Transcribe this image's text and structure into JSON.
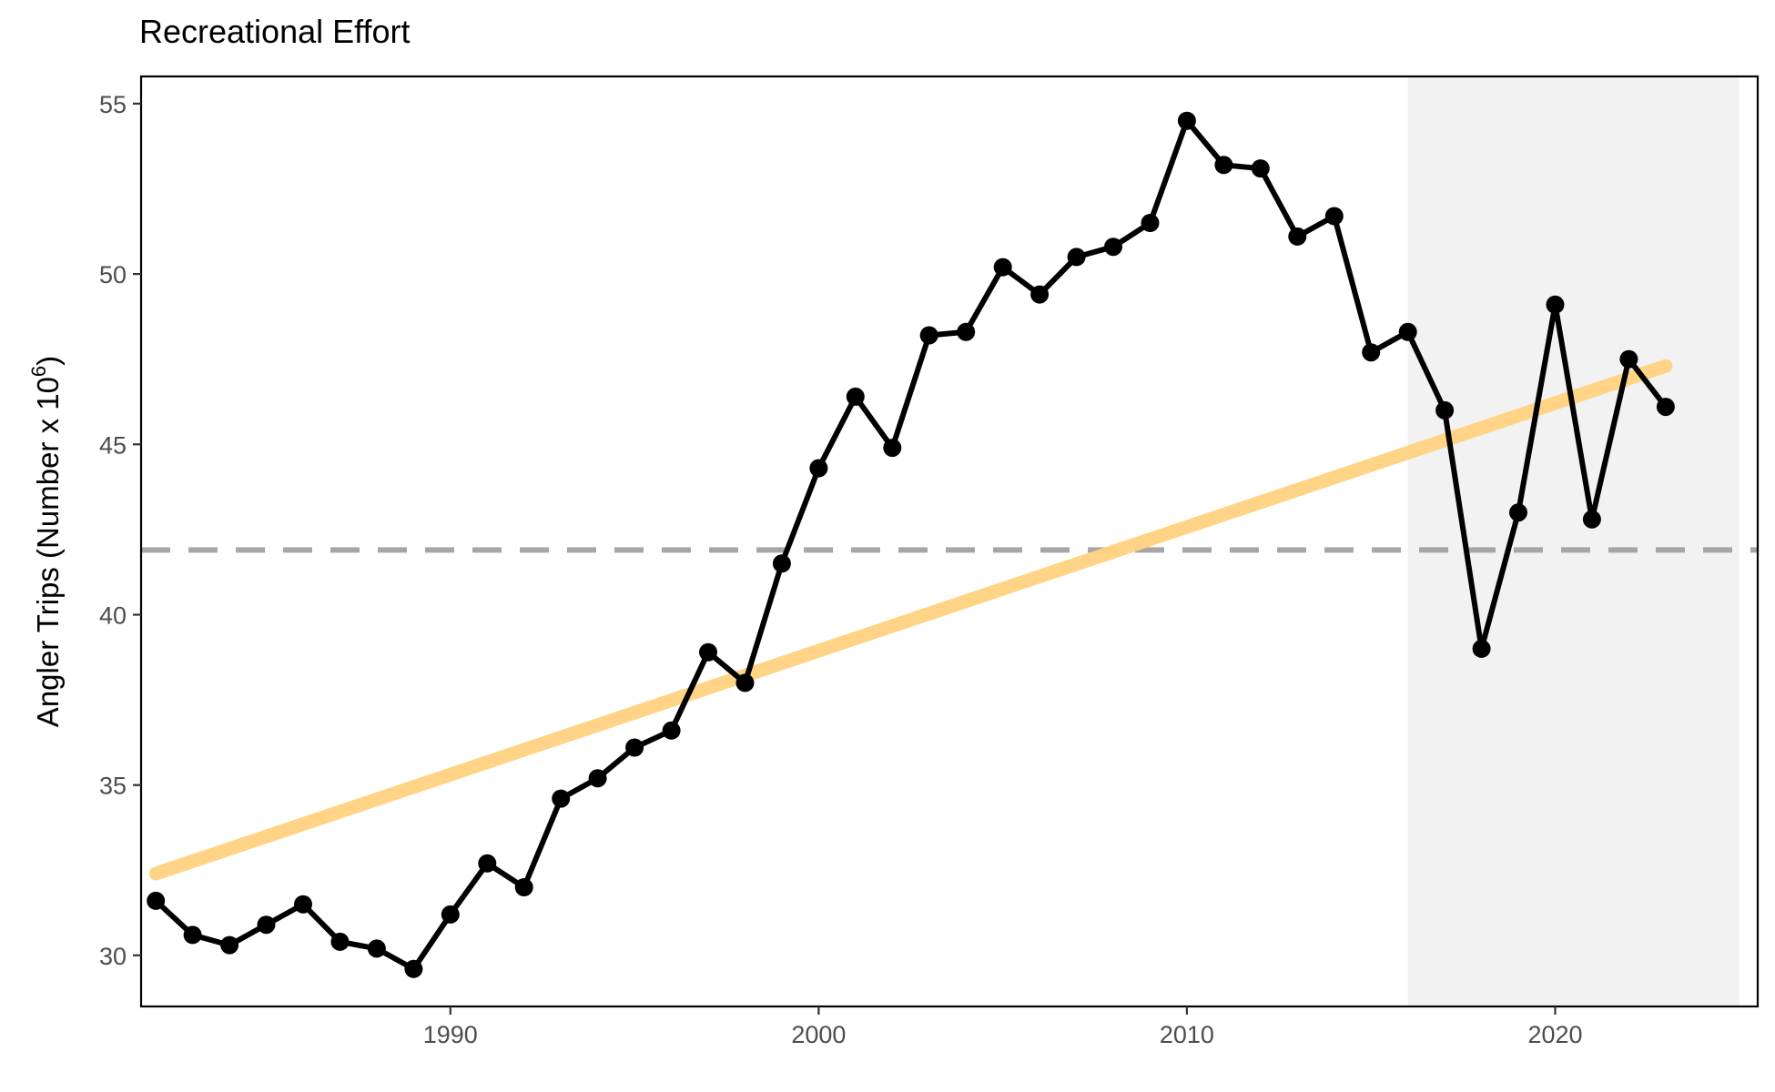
{
  "chart_data": {
    "type": "line",
    "title": "Recreational Effort",
    "ylabel": "Angler Trips (Number x 10",
    "ylabel_superscript": "6",
    "ylabel_suffix": ")",
    "xlabel": "",
    "xlim": [
      1981.6,
      2025.5
    ],
    "ylim": [
      28.5,
      55.8
    ],
    "x_ticks": [
      1990,
      2000,
      2010,
      2020
    ],
    "y_ticks": [
      30,
      35,
      40,
      45,
      50,
      55
    ],
    "grid": false,
    "legend": "none",
    "highlight_region": {
      "from": 2016,
      "to": 2025,
      "color": "#f2f2f2"
    },
    "reference_line": {
      "y": 41.9,
      "style": "dashed",
      "color": "#a6a6a6"
    },
    "trend_line": {
      "start": [
        1982,
        32.4
      ],
      "end": [
        2023,
        47.3
      ],
      "color": "#ffd27f"
    },
    "series": [
      {
        "color": "#000000",
        "x": [
          1982,
          1983,
          1984,
          1985,
          1986,
          1987,
          1988,
          1989,
          1990,
          1991,
          1992,
          1993,
          1994,
          1995,
          1996,
          1997,
          1998,
          1999,
          2000,
          2001,
          2002,
          2003,
          2004,
          2005,
          2006,
          2007,
          2008,
          2009,
          2010,
          2011,
          2012,
          2013,
          2014,
          2015,
          2016,
          2017,
          2018,
          2019,
          2020,
          2021,
          2022,
          2023
        ],
        "values": [
          31.6,
          30.6,
          30.3,
          30.9,
          31.5,
          30.4,
          30.2,
          29.6,
          31.2,
          32.7,
          32.0,
          34.6,
          35.2,
          36.1,
          36.6,
          38.9,
          38.0,
          41.5,
          44.3,
          46.4,
          44.9,
          48.2,
          48.3,
          50.2,
          49.4,
          50.5,
          50.8,
          51.5,
          54.5,
          53.2,
          53.1,
          51.1,
          51.7,
          47.7,
          48.3,
          46.0,
          39.0,
          43.0,
          49.1,
          42.8,
          47.5,
          46.1
        ]
      }
    ]
  }
}
